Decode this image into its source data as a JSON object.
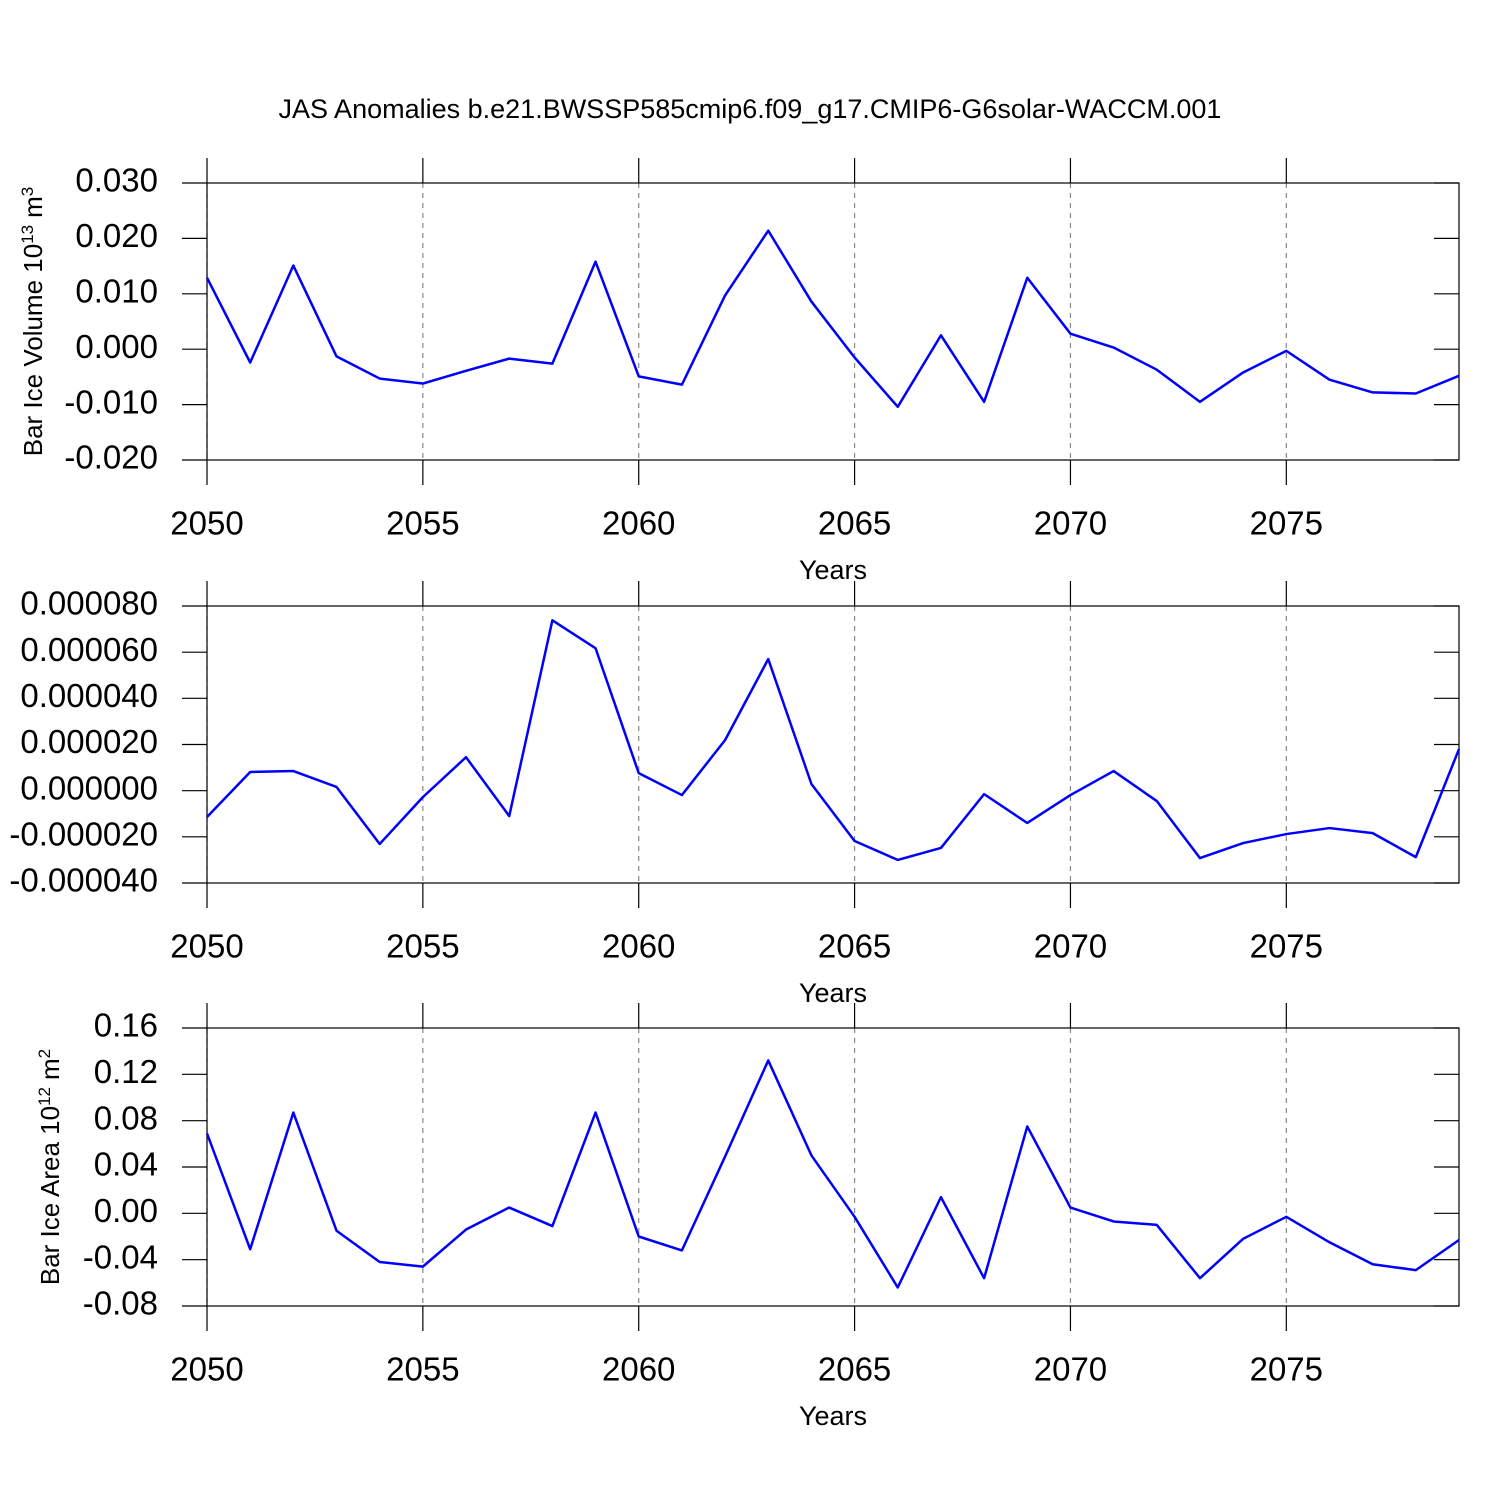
{
  "chart_data": [
    {
      "type": "line",
      "title": "JAS Anomalies b.e21.BWSSP585cmip6.f09_g17.CMIP6-G6solar-WACCM.001",
      "ylabel": {
        "text": "Bar Ice Volume 10",
        "exp": "13",
        "unit": "m",
        "unit_exp": "3"
      },
      "xlabel": "Years",
      "x": [
        2050,
        2051,
        2052,
        2053,
        2054,
        2055,
        2056,
        2057,
        2058,
        2059,
        2060,
        2061,
        2062,
        2063,
        2064,
        2065,
        2066,
        2067,
        2068,
        2069,
        2070,
        2071,
        2072,
        2073,
        2074,
        2075,
        2076,
        2077,
        2078,
        2079
      ],
      "values": [
        0.0129,
        -0.0024,
        0.0151,
        -0.0013,
        -0.0053,
        -0.0062,
        -0.0039,
        -0.0017,
        -0.0026,
        0.0158,
        -0.0049,
        -0.0064,
        0.0097,
        0.0214,
        0.0086,
        -0.0015,
        -0.0104,
        0.0025,
        -0.0095,
        0.0129,
        0.0028,
        0.0003,
        -0.0037,
        -0.0095,
        -0.0042,
        -0.0003,
        -0.0055,
        -0.0078,
        -0.008,
        -0.0048
      ],
      "color": "#0000ff",
      "xlim": [
        2050,
        2079
      ],
      "xticks": [
        2050,
        2055,
        2060,
        2065,
        2070,
        2075
      ],
      "ylim": [
        -0.02,
        0.03
      ],
      "yticks": [
        {
          "value": 0.03,
          "label": "0.030"
        },
        {
          "value": 0.02,
          "label": "0.020"
        },
        {
          "value": 0.01,
          "label": "0.010"
        },
        {
          "value": 0,
          "label": "0.000"
        },
        {
          "value": -0.01,
          "label": "-0.010"
        },
        {
          "value": -0.02,
          "label": "-0.020"
        }
      ],
      "xgrid": true
    },
    {
      "type": "line",
      "xlabel": "Years",
      "x": [
        2050,
        2051,
        2052,
        2053,
        2054,
        2055,
        2056,
        2057,
        2058,
        2059,
        2060,
        2061,
        2062,
        2063,
        2064,
        2065,
        2066,
        2067,
        2068,
        2069,
        2070,
        2071,
        2072,
        2073,
        2074,
        2075,
        2076,
        2077,
        2078,
        2079
      ],
      "values": [
        -1.14e-05,
        8.1e-06,
        8.5e-06,
        1.6e-06,
        -2.31e-05,
        -2.8e-06,
        1.45e-05,
        -1.1e-05,
        7.38e-05,
        6.17e-05,
        7.6e-06,
        -1.9e-06,
        2.19e-05,
        5.7e-05,
        2.9e-06,
        -2.18e-05,
        -3e-05,
        -2.48e-05,
        -1.5e-06,
        -1.4e-05,
        -1.9e-06,
        8.5e-06,
        -4.5e-06,
        -2.92e-05,
        -2.27e-05,
        -1.88e-05,
        -1.62e-05,
        -1.84e-05,
        -2.88e-05,
        1.8e-05
      ],
      "color": "#0000ff",
      "xlim": [
        2050,
        2079
      ],
      "xticks": [
        2050,
        2055,
        2060,
        2065,
        2070,
        2075
      ],
      "ylim": [
        -4e-05,
        8e-05
      ],
      "yticks": [
        {
          "value": 8e-05,
          "label": "0.000080"
        },
        {
          "value": 6e-05,
          "label": "0.000060"
        },
        {
          "value": 4e-05,
          "label": "0.000040"
        },
        {
          "value": 2e-05,
          "label": "0.000020"
        },
        {
          "value": 0,
          "label": "0.000000"
        },
        {
          "value": -2e-05,
          "label": "-0.000020"
        },
        {
          "value": -4e-05,
          "label": "-0.000040"
        }
      ],
      "xgrid": true
    },
    {
      "type": "line",
      "ylabel": {
        "text": "Bar Ice Area 10",
        "exp": "12",
        "unit": "m",
        "unit_exp": "2"
      },
      "xlabel": "Years",
      "x": [
        2050,
        2051,
        2052,
        2053,
        2054,
        2055,
        2056,
        2057,
        2058,
        2059,
        2060,
        2061,
        2062,
        2063,
        2064,
        2065,
        2066,
        2067,
        2068,
        2069,
        2070,
        2071,
        2072,
        2073,
        2074,
        2075,
        2076,
        2077,
        2078,
        2079
      ],
      "values": [
        0.069,
        -0.031,
        0.087,
        -0.015,
        -0.042,
        -0.046,
        -0.014,
        0.005,
        -0.011,
        0.087,
        -0.02,
        -0.032,
        0.049,
        0.132,
        0.05,
        -0.003,
        -0.064,
        0.014,
        -0.056,
        0.075,
        0.005,
        -0.007,
        -0.01,
        -0.056,
        -0.022,
        -0.003,
        -0.025,
        -0.044,
        -0.049,
        -0.023
      ],
      "color": "#0000ff",
      "xlim": [
        2050,
        2079
      ],
      "xticks": [
        2050,
        2055,
        2060,
        2065,
        2070,
        2075
      ],
      "ylim": [
        -0.08,
        0.16
      ],
      "yticks": [
        0.16,
        0.12,
        0.08,
        0.04,
        {
          "value": 0,
          "label": "0.00"
        },
        -0.04,
        -0.08
      ],
      "xgrid": true
    }
  ]
}
